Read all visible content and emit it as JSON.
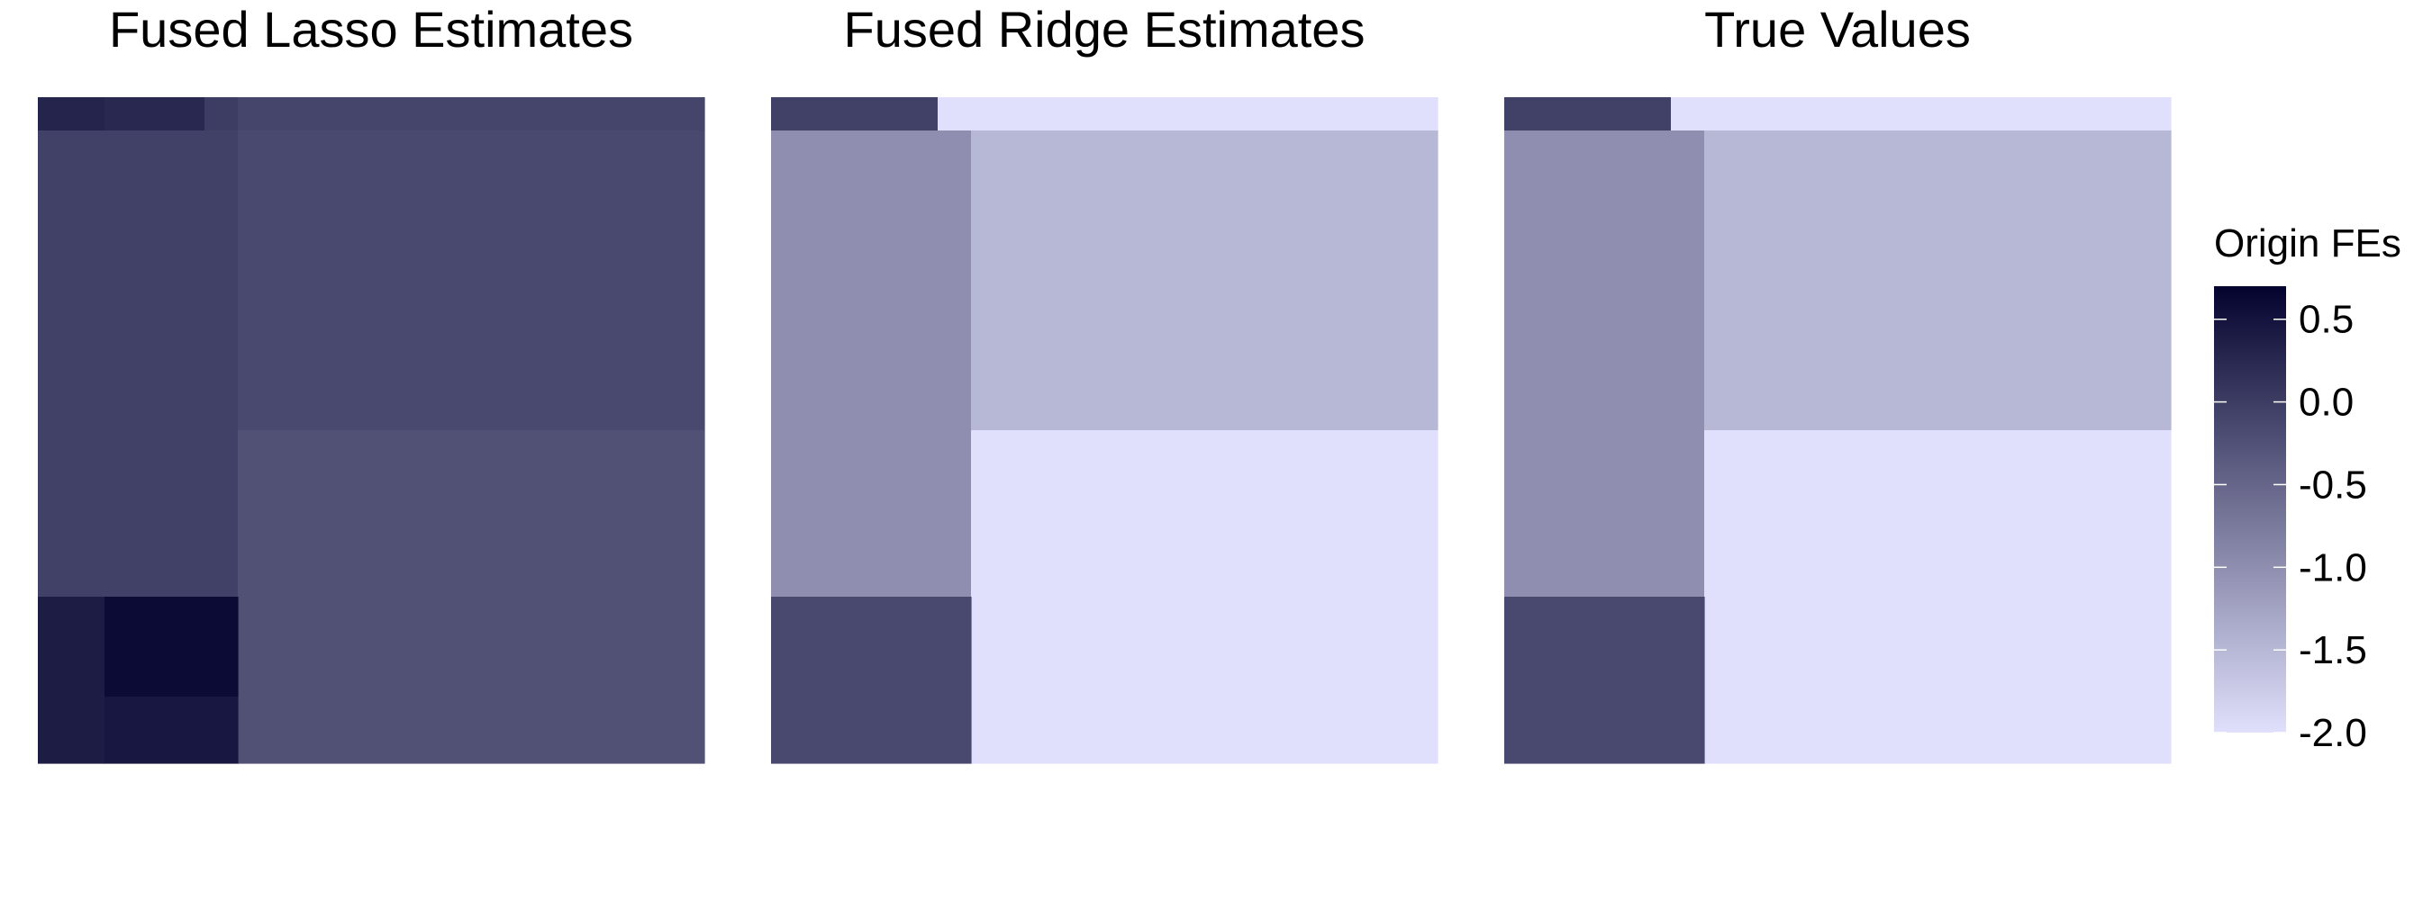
{
  "chart_data": {
    "type": "heatmap",
    "color_scale": {
      "title": "Origin FEs",
      "domain": [
        -2.0,
        0.7
      ],
      "ticks": [
        0.5,
        0.0,
        -0.5,
        -1.0,
        -1.5,
        -2.0
      ],
      "tick_labels": [
        "0.5",
        "0.0",
        "-0.5",
        "-1.0",
        "-1.5",
        "-2.0"
      ],
      "low_color": "#e0e0fc",
      "high_color": "#04032e"
    },
    "grid": {
      "cols": 20,
      "rows": 20
    },
    "panels": [
      {
        "title": "Fused Lasso Estimates",
        "blocks": [
          {
            "c0": 0,
            "c1": 2,
            "r0": 0,
            "r1": 1,
            "value": 0.3
          },
          {
            "c0": 2,
            "c1": 5,
            "r0": 0,
            "r1": 1,
            "value": 0.25
          },
          {
            "c0": 5,
            "c1": 6,
            "r0": 0,
            "r1": 1,
            "value": 0.0
          },
          {
            "c0": 6,
            "c1": 20,
            "r0": 0,
            "r1": 1,
            "value": -0.1
          },
          {
            "c0": 0,
            "c1": 6,
            "r0": 1,
            "r1": 15,
            "value": -0.05
          },
          {
            "c0": 6,
            "c1": 20,
            "r0": 1,
            "r1": 10,
            "value": -0.15
          },
          {
            "c0": 6,
            "c1": 20,
            "r0": 10,
            "r1": 20,
            "value": -0.25
          },
          {
            "c0": 0,
            "c1": 2,
            "r0": 15,
            "r1": 20,
            "value": 0.4
          },
          {
            "c0": 2,
            "c1": 6,
            "r0": 15,
            "r1": 18,
            "value": 0.6
          },
          {
            "c0": 2,
            "c1": 6,
            "r0": 18,
            "r1": 20,
            "value": 0.45
          }
        ]
      },
      {
        "title": "Fused Ridge Estimates",
        "blocks": [
          {
            "c0": 0,
            "c1": 5,
            "r0": 0,
            "r1": 1,
            "value": -0.05
          },
          {
            "c0": 5,
            "c1": 20,
            "r0": 0,
            "r1": 1,
            "value": -2.0
          },
          {
            "c0": 0,
            "c1": 6,
            "r0": 1,
            "r1": 15,
            "value": -1.0
          },
          {
            "c0": 6,
            "c1": 20,
            "r0": 1,
            "r1": 10,
            "value": -1.5
          },
          {
            "c0": 6,
            "c1": 20,
            "r0": 10,
            "r1": 20,
            "value": -2.0
          },
          {
            "c0": 0,
            "c1": 6,
            "r0": 15,
            "r1": 20,
            "value": -0.15
          }
        ]
      },
      {
        "title": "True Values",
        "blocks": [
          {
            "c0": 0,
            "c1": 5,
            "r0": 0,
            "r1": 1,
            "value": -0.05
          },
          {
            "c0": 5,
            "c1": 20,
            "r0": 0,
            "r1": 1,
            "value": -2.0
          },
          {
            "c0": 0,
            "c1": 6,
            "r0": 1,
            "r1": 15,
            "value": -1.0
          },
          {
            "c0": 6,
            "c1": 20,
            "r0": 1,
            "r1": 10,
            "value": -1.5
          },
          {
            "c0": 6,
            "c1": 20,
            "r0": 10,
            "r1": 20,
            "value": -2.0
          },
          {
            "c0": 0,
            "c1": 6,
            "r0": 15,
            "r1": 20,
            "value": -0.15
          }
        ]
      }
    ]
  }
}
